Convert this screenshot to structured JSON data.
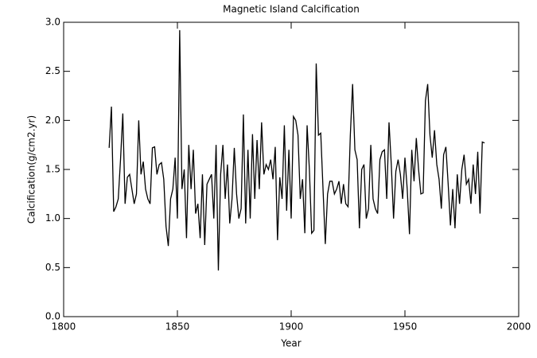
{
  "chart_data": {
    "type": "line",
    "title": "Magnetic Island Calcification",
    "x_label": "Year",
    "y_label": "Calcification(g/cm2.yr)",
    "x": [
      1820,
      1821,
      1822,
      1823,
      1824,
      1825,
      1826,
      1827,
      1828,
      1829,
      1830,
      1831,
      1832,
      1833,
      1834,
      1835,
      1836,
      1837,
      1838,
      1839,
      1840,
      1841,
      1842,
      1843,
      1844,
      1845,
      1846,
      1847,
      1848,
      1849,
      1850,
      1851,
      1852,
      1853,
      1854,
      1855,
      1856,
      1857,
      1858,
      1859,
      1860,
      1861,
      1862,
      1863,
      1864,
      1865,
      1866,
      1867,
      1868,
      1869,
      1870,
      1871,
      1872,
      1873,
      1874,
      1875,
      1876,
      1877,
      1878,
      1879,
      1880,
      1881,
      1882,
      1883,
      1884,
      1885,
      1886,
      1887,
      1888,
      1889,
      1890,
      1891,
      1892,
      1893,
      1894,
      1895,
      1896,
      1897,
      1898,
      1899,
      1900,
      1901,
      1902,
      1903,
      1904,
      1905,
      1906,
      1907,
      1908,
      1909,
      1910,
      1911,
      1912,
      1913,
      1914,
      1915,
      1916,
      1917,
      1918,
      1919,
      1920,
      1921,
      1922,
      1923,
      1924,
      1925,
      1926,
      1927,
      1928,
      1929,
      1930,
      1931,
      1932,
      1933,
      1934,
      1935,
      1936,
      1937,
      1938,
      1939,
      1940,
      1941,
      1942,
      1943,
      1944,
      1945,
      1946,
      1947,
      1948,
      1949,
      1950,
      1951,
      1952,
      1953,
      1954,
      1955,
      1956,
      1957,
      1958,
      1959,
      1960,
      1961,
      1962,
      1963,
      1964,
      1965,
      1966,
      1967,
      1968,
      1969,
      1970,
      1971,
      1972,
      1973,
      1974,
      1975,
      1976,
      1977,
      1978,
      1979,
      1980,
      1981,
      1982,
      1983,
      1984,
      1985
    ],
    "series": [
      {
        "color": "#000000",
        "values": [
          1.72,
          2.14,
          1.07,
          1.12,
          1.2,
          1.6,
          2.07,
          1.15,
          1.42,
          1.45,
          1.3,
          1.15,
          1.25,
          2.0,
          1.45,
          1.58,
          1.3,
          1.2,
          1.15,
          1.72,
          1.73,
          1.45,
          1.55,
          1.57,
          1.4,
          0.92,
          0.72,
          1.2,
          1.3,
          1.62,
          1.0,
          2.92,
          1.3,
          1.5,
          0.8,
          1.75,
          1.3,
          1.7,
          1.05,
          1.15,
          0.8,
          1.45,
          0.73,
          1.35,
          1.4,
          1.45,
          1.0,
          1.75,
          0.47,
          1.45,
          1.75,
          1.2,
          1.55,
          0.95,
          1.2,
          1.72,
          1.25,
          1.0,
          1.1,
          2.06,
          0.95,
          1.7,
          1.0,
          1.86,
          1.2,
          1.8,
          1.3,
          1.98,
          1.45,
          1.55,
          1.5,
          1.6,
          1.4,
          1.73,
          0.78,
          1.42,
          1.2,
          1.95,
          1.08,
          1.7,
          1.0,
          2.04,
          2.0,
          1.85,
          1.2,
          1.4,
          0.85,
          1.95,
          1.5,
          0.85,
          0.88,
          2.58,
          1.85,
          1.87,
          1.3,
          0.74,
          1.25,
          1.38,
          1.38,
          1.25,
          1.3,
          1.38,
          1.15,
          1.35,
          1.15,
          1.12,
          1.85,
          2.37,
          1.7,
          1.6,
          0.9,
          1.5,
          1.55,
          1.0,
          1.1,
          1.75,
          1.2,
          1.1,
          1.05,
          1.6,
          1.68,
          1.7,
          1.2,
          1.98,
          1.55,
          1.0,
          1.48,
          1.6,
          1.45,
          1.2,
          1.62,
          1.3,
          0.84,
          1.7,
          1.38,
          1.82,
          1.5,
          1.25,
          1.26,
          2.2,
          2.37,
          1.85,
          1.62,
          1.9,
          1.55,
          1.4,
          1.1,
          1.65,
          1.73,
          1.35,
          0.93,
          1.3,
          0.9,
          1.45,
          1.15,
          1.5,
          1.65,
          1.35,
          1.4,
          1.15,
          1.55,
          1.25,
          1.68,
          1.05,
          1.78,
          1.77
        ]
      }
    ],
    "xlim": [
      1800,
      2000
    ],
    "xticks": [
      1800,
      1850,
      1900,
      1950,
      2000
    ],
    "ylim": [
      0,
      3
    ],
    "yticks": [
      {
        "value": 0,
        "label": "0.0"
      },
      {
        "value": 0.5,
        "label": "0.5"
      },
      {
        "value": 1,
        "label": "1.0"
      },
      {
        "value": 1.5,
        "label": "1.5"
      },
      {
        "value": 2,
        "label": "2.0"
      },
      {
        "value": 2.5,
        "label": "2.5"
      },
      {
        "value": 3,
        "label": "3.0"
      }
    ]
  }
}
